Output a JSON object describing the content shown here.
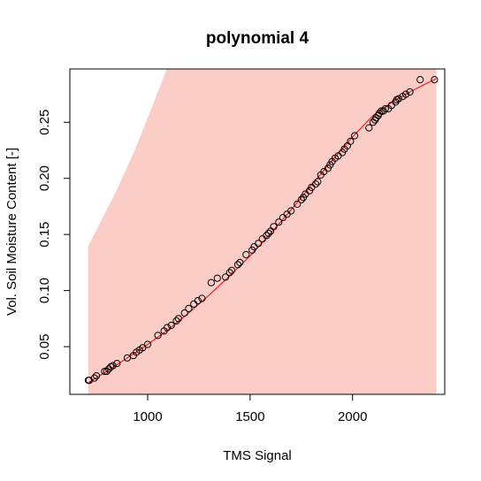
{
  "chart_data": {
    "type": "scatter",
    "title": "polynomial 4",
    "xlabel": "TMS Signal",
    "ylabel": "Vol. Soil Moisture Content [-]",
    "xlim": [
      620,
      2450
    ],
    "ylim": [
      0.0075,
      0.2975
    ],
    "xticks": [
      1000,
      1500,
      2000
    ],
    "xtick_labels": [
      "1000",
      "1500",
      "2000"
    ],
    "yticks": [
      0.05,
      0.1,
      0.15,
      0.2,
      0.25
    ],
    "ytick_labels": [
      "0.05",
      "0.10",
      "0.15",
      "0.20",
      "0.25"
    ],
    "grid": false,
    "legend": "none",
    "colors": {
      "points": "#000000",
      "fit": "#ee2222",
      "band": "#fcccc6",
      "frame": "#000000"
    },
    "band": {
      "x": [
        710,
        750,
        800,
        850,
        900,
        950,
        1000,
        1050,
        1100,
        1150,
        1200,
        2410
      ],
      "upper": [
        0.14,
        0.154,
        0.172,
        0.19,
        0.21,
        0.231,
        0.254,
        0.277,
        0.301,
        0.33,
        0.36,
        0.33
      ],
      "lower": [
        0.0075,
        0.0075,
        0.0075,
        0.0075,
        0.0075,
        0.0075,
        0.0075,
        0.0075,
        0.0075,
        0.0075,
        0.0075,
        0.0075
      ]
    },
    "fit": {
      "x": [
        710,
        800,
        900,
        1000,
        1100,
        1200,
        1300,
        1400,
        1500,
        1600,
        1700,
        1800,
        1900,
        2000,
        2100,
        2200,
        2300,
        2410
      ],
      "y": [
        0.018,
        0.028,
        0.04,
        0.052,
        0.065,
        0.08,
        0.096,
        0.113,
        0.131,
        0.151,
        0.172,
        0.194,
        0.216,
        0.237,
        0.256,
        0.269,
        0.279,
        0.289
      ]
    },
    "series": [
      {
        "x": [
          710,
          715,
          740,
          750,
          790,
          800,
          810,
          820,
          830,
          850,
          900,
          930,
          945,
          960,
          975,
          1000,
          1050,
          1080,
          1095,
          1115,
          1140,
          1150,
          1180,
          1200,
          1225,
          1245,
          1265,
          1310,
          1340,
          1380,
          1400,
          1410,
          1440,
          1450,
          1480,
          1510,
          1520,
          1540,
          1560,
          1580,
          1590,
          1600,
          1615,
          1640,
          1660,
          1680,
          1700,
          1730,
          1750,
          1760,
          1770,
          1790,
          1800,
          1820,
          1830,
          1845,
          1860,
          1880,
          1890,
          1900,
          1915,
          1930,
          1950,
          1960,
          1975,
          1990,
          2010,
          2080,
          2100,
          2110,
          2115,
          2125,
          2130,
          2140,
          2150,
          2160,
          2175,
          2190,
          2210,
          2215,
          2225,
          2245,
          2260,
          2280,
          2330,
          2400
        ],
        "y": [
          0.02,
          0.02,
          0.022,
          0.024,
          0.028,
          0.028,
          0.03,
          0.032,
          0.033,
          0.035,
          0.04,
          0.042,
          0.045,
          0.047,
          0.049,
          0.052,
          0.06,
          0.064,
          0.067,
          0.069,
          0.073,
          0.075,
          0.08,
          0.084,
          0.088,
          0.091,
          0.093,
          0.107,
          0.111,
          0.112,
          0.116,
          0.118,
          0.123,
          0.125,
          0.132,
          0.136,
          0.139,
          0.142,
          0.146,
          0.149,
          0.151,
          0.153,
          0.157,
          0.161,
          0.165,
          0.168,
          0.171,
          0.177,
          0.181,
          0.183,
          0.186,
          0.189,
          0.192,
          0.195,
          0.197,
          0.203,
          0.206,
          0.209,
          0.212,
          0.215,
          0.218,
          0.22,
          0.223,
          0.226,
          0.229,
          0.233,
          0.238,
          0.245,
          0.25,
          0.252,
          0.254,
          0.256,
          0.258,
          0.26,
          0.26,
          0.262,
          0.262,
          0.265,
          0.268,
          0.27,
          0.271,
          0.273,
          0.275,
          0.277,
          0.288,
          0.288
        ]
      }
    ]
  }
}
